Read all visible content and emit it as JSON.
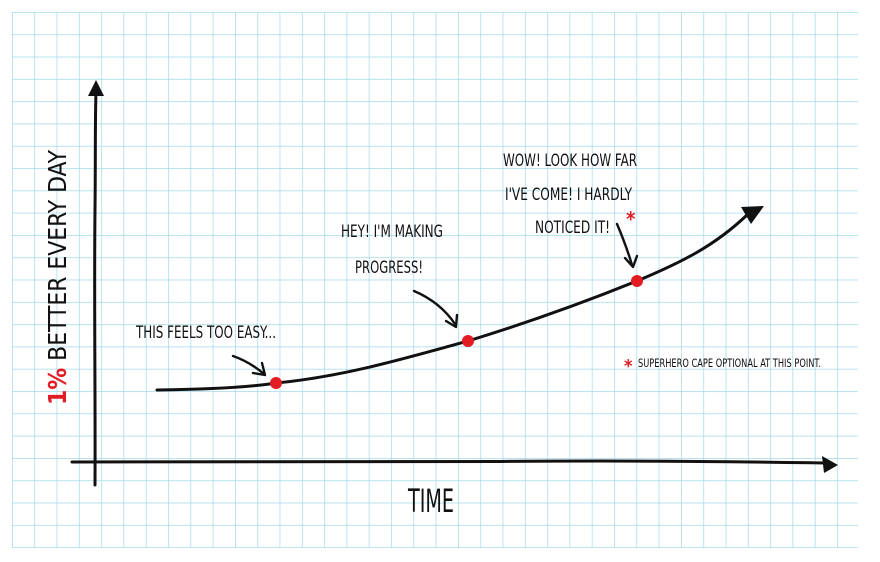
{
  "colors": {
    "paper": "#ffffff",
    "grid": "#9fd8ea",
    "ink": "#111111",
    "accent": "#e31b23"
  },
  "axes": {
    "x_label": "TIME",
    "y_label_prefix": "1%",
    "y_label_rest": " BETTER EVERY DAY"
  },
  "annotations": {
    "easy": "THIS FEELS TOO EASY...",
    "progress_line1": "HEY! I'M MAKING",
    "progress_line2": "PROGRESS!",
    "far_line1": "WOW! LOOK HOW FAR",
    "far_line2": "I'VE COME! I HARDLY",
    "far_line3": "NOTICED IT!",
    "asterisk": "*",
    "footnote_mark": "*",
    "footnote": "SUPERHERO CAPE OPTIONAL AT THIS POINT."
  },
  "icons": {
    "curve_arrow": "arrow-head-icon",
    "x_arrow": "arrow-right-icon",
    "y_arrow": "arrow-up-icon"
  }
}
